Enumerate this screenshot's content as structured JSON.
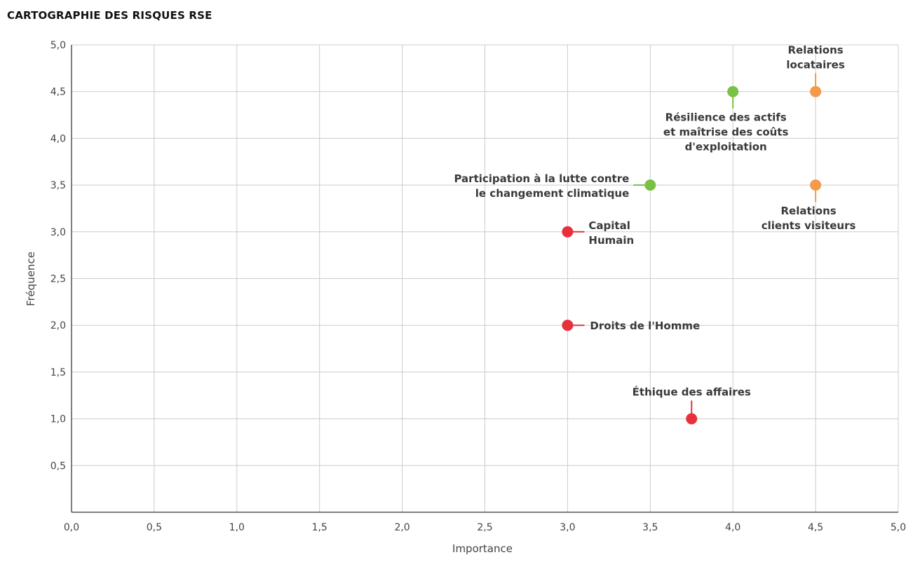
{
  "page": {
    "title": "CARTOGRAPHIE DES RISQUES RSE"
  },
  "chart_data": {
    "type": "scatter",
    "title": "CARTOGRAPHIE DES RISQUES RSE",
    "xlabel": "Importance",
    "ylabel": "Fréquence",
    "xlim": [
      0,
      5
    ],
    "ylim": [
      0,
      5
    ],
    "grid": true,
    "x_ticks": [
      "0,0",
      "0,5",
      "1,0",
      "1,5",
      "2,0",
      "2,5",
      "3,0",
      "3,5",
      "4,0",
      "4,5",
      "5,0"
    ],
    "y_ticks": [
      "",
      "0,5",
      "1,0",
      "1,5",
      "2,0",
      "2,5",
      "3,0",
      "3,5",
      "4,0",
      "4,5",
      "5,0"
    ],
    "points": [
      {
        "label": [
          "Relations",
          "locataires"
        ],
        "x": 4.5,
        "y": 4.5,
        "color": "#f39a4b",
        "placement": "above"
      },
      {
        "label": [
          "Résilience des actifs",
          "et maîtrise des coûts",
          "d'exploitation"
        ],
        "x": 4.0,
        "y": 4.5,
        "color": "#79c145",
        "placement": "below"
      },
      {
        "label": [
          "Participation à la lutte contre",
          "le changement climatique"
        ],
        "x": 3.5,
        "y": 3.5,
        "color": "#79c145",
        "placement": "left"
      },
      {
        "label": [
          "Relations",
          "clients visiteurs"
        ],
        "x": 4.5,
        "y": 3.5,
        "color": "#f39a4b",
        "placement": "below"
      },
      {
        "label": [
          "Capital",
          "Humain"
        ],
        "x": 3.0,
        "y": 3.0,
        "color": "#e8303c",
        "placement": "right"
      },
      {
        "label": [
          "Droits de l'Homme"
        ],
        "x": 3.0,
        "y": 2.0,
        "color": "#e8303c",
        "placement": "right"
      },
      {
        "label": [
          "Éthique des affaires"
        ],
        "x": 3.75,
        "y": 1.0,
        "color": "#e8303c",
        "placement": "above"
      }
    ]
  }
}
